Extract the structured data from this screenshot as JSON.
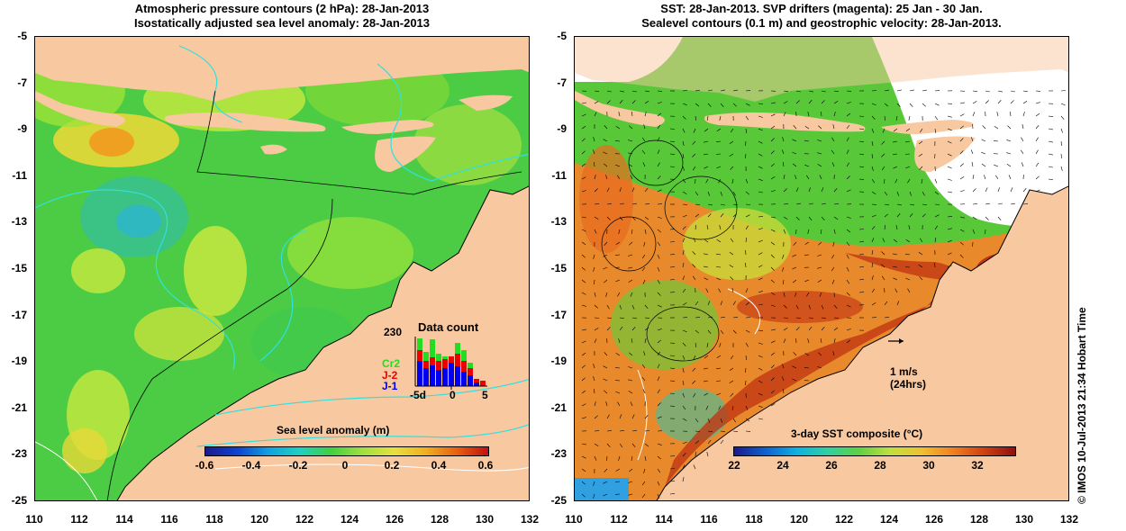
{
  "left_panel": {
    "title_line1": "Atmospheric pressure contours (2 hPa): 28-Jan-2013",
    "title_line2": "Isostatically adjusted sea level anomaly: 28-Jan-2013",
    "colorbar_label": "Sea level anomaly (m)",
    "colorbar_ticks": [
      "-0.6",
      "-0.4",
      "-0.2",
      "0",
      "0.2",
      "0.4",
      "0.6"
    ],
    "inset": {
      "title": "Data count",
      "ymax_label": "230",
      "legend": [
        {
          "label": "Cr2",
          "color": "#22dd22"
        },
        {
          "label": "J-2",
          "color": "#ee0000"
        },
        {
          "label": "J-1",
          "color": "#0000ee"
        }
      ],
      "x_ticks": [
        "-5d",
        "0",
        "5"
      ]
    }
  },
  "right_panel": {
    "title_line1": "SST: 28-Jan-2013. SVP drifters (magenta): 25 Jan - 30 Jan.",
    "title_line2": "Sealevel contours (0.1 m) and geostrophic velocity: 28-Jan-2013.",
    "colorbar_label": "3-day SST composite (°C)",
    "colorbar_ticks": [
      "22",
      "24",
      "26",
      "28",
      "30",
      "32"
    ],
    "scale_arrow_label1": "1 m/s",
    "scale_arrow_label2": "(24hrs)"
  },
  "axes": {
    "y_ticks": [
      "-5",
      "-7",
      "-9",
      "-11",
      "-13",
      "-15",
      "-17",
      "-19",
      "-21",
      "-23",
      "-25"
    ],
    "x_ticks": [
      "110",
      "112",
      "114",
      "116",
      "118",
      "120",
      "122",
      "124",
      "126",
      "128",
      "130",
      "132"
    ]
  },
  "copyright": "© IMOS 10-Jul-2013 21:34 Hobart Time",
  "colors": {
    "land": "#f8c8a0",
    "sla_base": "#4ccc44",
    "sst_base": "#e88a2c"
  }
}
